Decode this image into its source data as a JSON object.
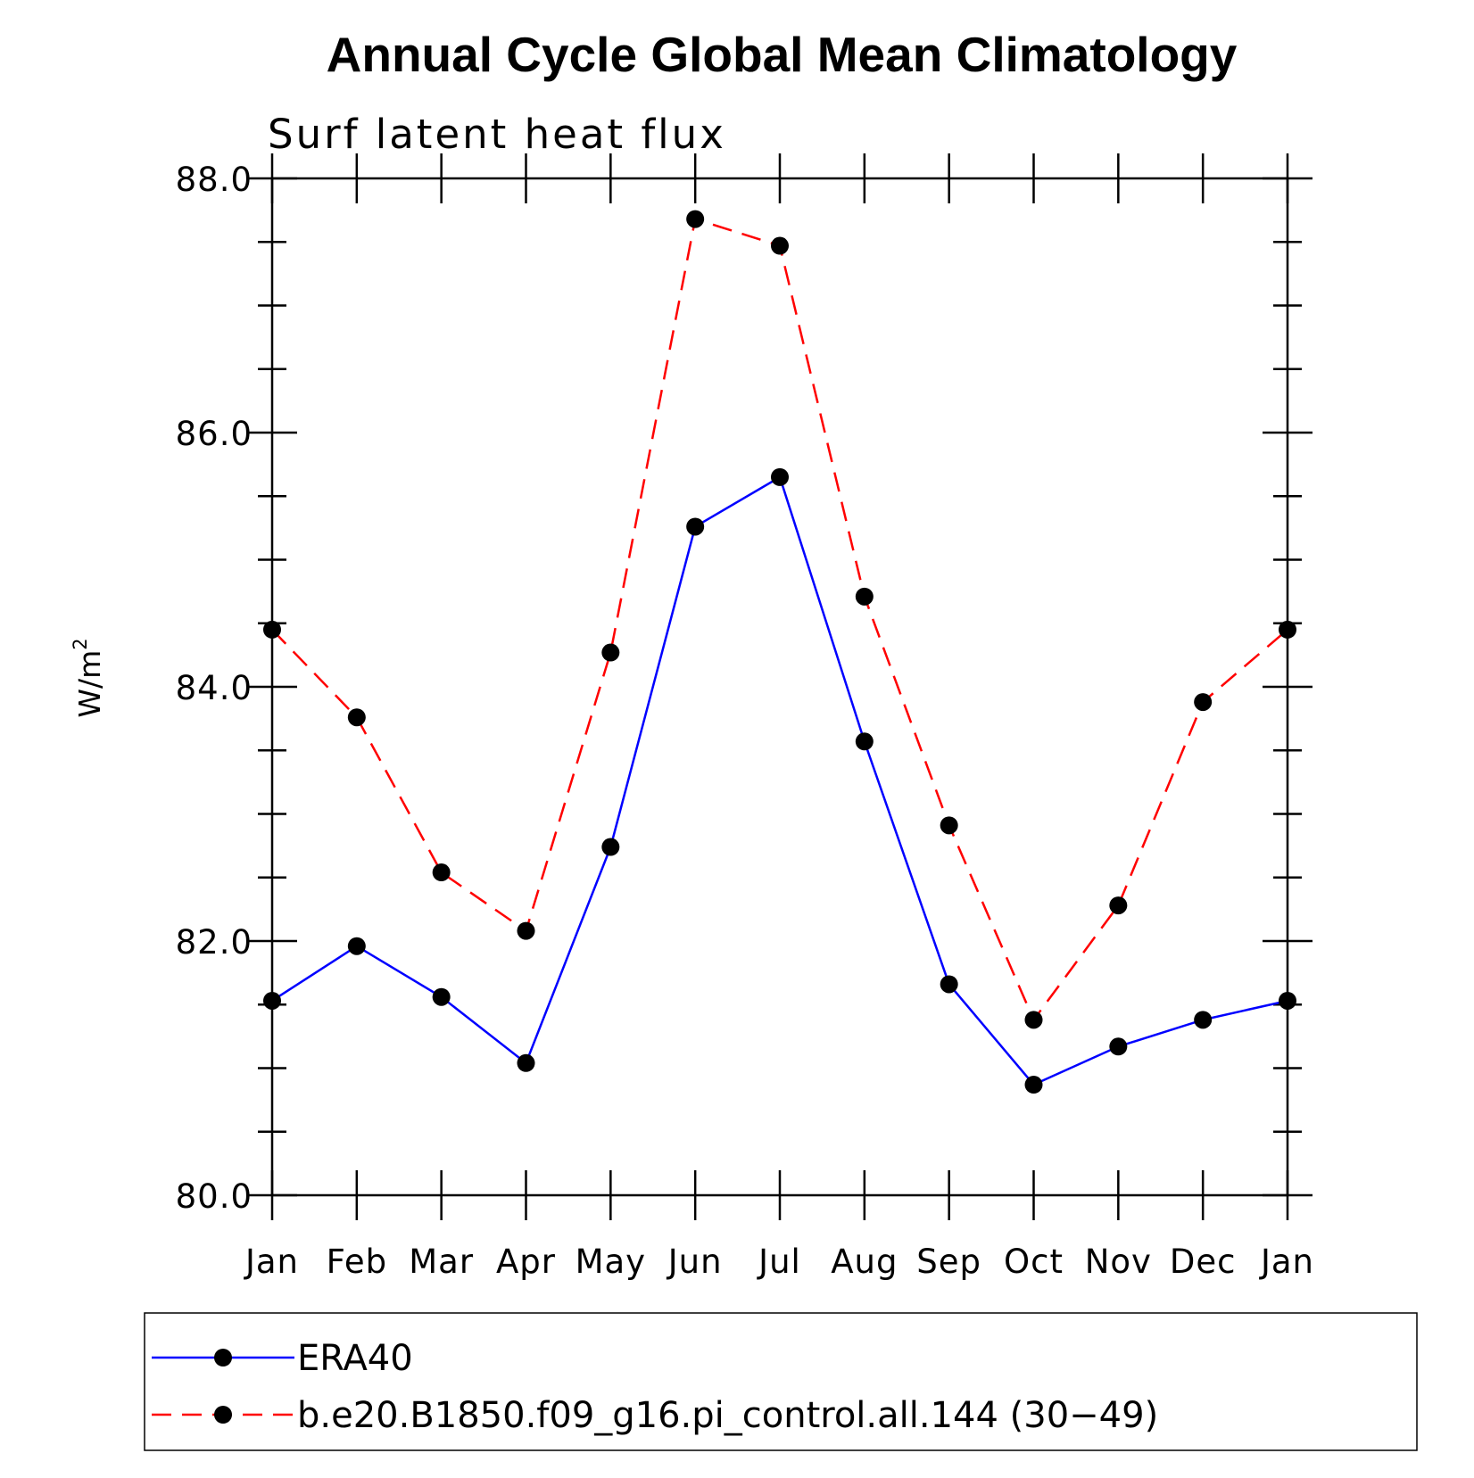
{
  "chart_data": {
    "type": "line",
    "title": "Annual Cycle Global Mean Climatology",
    "subtitle": "Surf latent heat flux",
    "xlabel": "",
    "ylabel": "W/m",
    "ylabel_superscript": "2",
    "categories": [
      "Jan",
      "Feb",
      "Mar",
      "Apr",
      "May",
      "Jun",
      "Jul",
      "Aug",
      "Sep",
      "Oct",
      "Nov",
      "Dec",
      "Jan"
    ],
    "ylim": [
      80.0,
      88.0
    ],
    "yticks": [
      "80.0",
      "82.0",
      "84.0",
      "86.0",
      "88.0"
    ],
    "y_minor_step": 0.5,
    "grid": false,
    "legend_position": "bottom",
    "series": [
      {
        "name": "ERA40",
        "color": "#0000ff",
        "dash": "solid",
        "marker": "filled-circle",
        "values": [
          81.53,
          81.96,
          81.56,
          81.04,
          82.74,
          85.26,
          85.65,
          83.57,
          81.66,
          80.87,
          81.17,
          81.38,
          81.53
        ]
      },
      {
        "name": "b.e20.B1850.f09_g16.pi_control.all.144 (30−49)",
        "color": "#ff0000",
        "dash": "dashed",
        "marker": "filled-circle",
        "values": [
          84.45,
          83.76,
          82.54,
          82.08,
          84.27,
          87.68,
          87.47,
          84.71,
          82.91,
          81.38,
          82.28,
          83.88,
          84.45
        ]
      }
    ]
  }
}
